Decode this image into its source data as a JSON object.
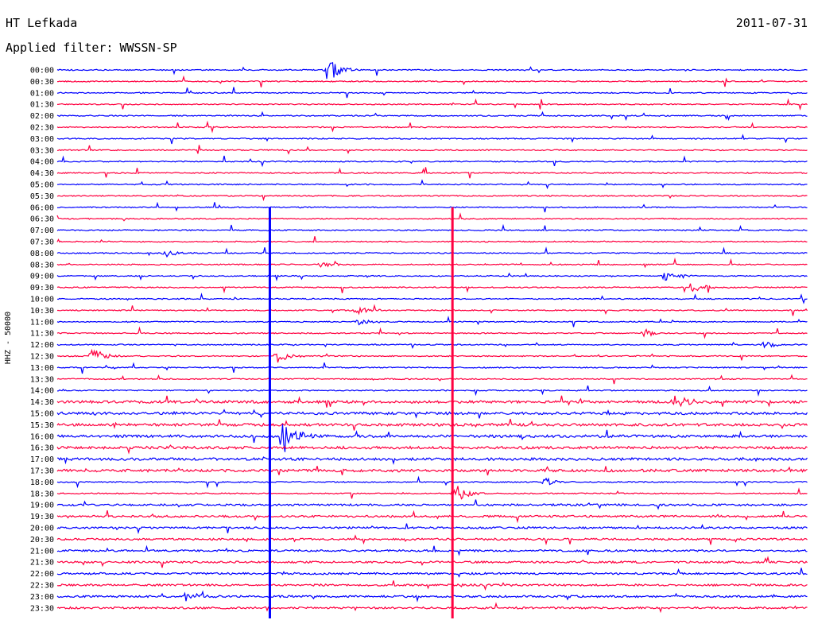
{
  "header": {
    "station": "HT Lefkada",
    "date": "2011-07-31",
    "filter_label": "Applied filter:",
    "filter_value": "WWSSN-SP"
  },
  "channel_label": "HHZ - 50000",
  "chart_data": {
    "type": "line",
    "title": "HT Lefkada",
    "subtitle": "Applied filter: WWSSN-SP",
    "ylabel": "HHZ - 50000",
    "ticks": [
      "00:00",
      "00:30",
      "01:00",
      "01:30",
      "02:00",
      "02:30",
      "03:00",
      "03:30",
      "04:00",
      "04:30",
      "05:00",
      "05:30",
      "06:00",
      "06:30",
      "07:00",
      "07:30",
      "08:00",
      "08:30",
      "09:00",
      "09:30",
      "10:00",
      "10:30",
      "11:00",
      "11:30",
      "12:00",
      "12:30",
      "13:00",
      "13:30",
      "14:00",
      "14:30",
      "15:00",
      "15:30",
      "16:00",
      "16:30",
      "17:00",
      "17:30",
      "18:00",
      "18:30",
      "19:00",
      "19:30",
      "20:00",
      "20:30",
      "21:00",
      "21:30",
      "22:00",
      "22:30",
      "23:00",
      "23:30"
    ],
    "x_minutes_per_line": [
      0,
      30
    ],
    "trace_colors": [
      "#0000ff",
      "#ff0040"
    ],
    "grid": false,
    "events": [
      {
        "trace": "00:00",
        "minute": 10.8,
        "amplitude": 1.6
      },
      {
        "trace": "08:00",
        "minute": 4.3,
        "amplitude": 0.5
      },
      {
        "trace": "08:30",
        "minute": 10.5,
        "amplitude": 0.6
      },
      {
        "trace": "09:00",
        "minute": 24.3,
        "amplitude": 0.6
      },
      {
        "trace": "09:30",
        "minute": 25.3,
        "amplitude": 0.8
      },
      {
        "trace": "10:30",
        "minute": 12.0,
        "amplitude": 0.7
      },
      {
        "trace": "11:00",
        "minute": 12.0,
        "amplitude": 0.5
      },
      {
        "trace": "11:30",
        "minute": 23.5,
        "amplitude": 0.5
      },
      {
        "trace": "12:00",
        "minute": 28.3,
        "amplitude": 0.5
      },
      {
        "trace": "12:30",
        "minute": 1.4,
        "amplitude": 1.0
      },
      {
        "trace": "12:30",
        "minute": 8.8,
        "amplitude": 0.8
      },
      {
        "trace": "14:30",
        "minute": 24.7,
        "amplitude": 1.2
      },
      {
        "trace": "16:00",
        "minute": 9.0,
        "amplitude": 2.6
      },
      {
        "trace": "18:00",
        "minute": 19.5,
        "amplitude": 0.5
      },
      {
        "trace": "18:30",
        "minute": 15.9,
        "amplitude": 1.5
      },
      {
        "trace": "23:00",
        "minute": 5.1,
        "amplitude": 0.7
      }
    ],
    "clipped_traces": [
      {
        "minute": 8.5,
        "from": "06:00",
        "to": "23:30",
        "color": "#0000ff"
      },
      {
        "minute": 15.8,
        "from": "06:00",
        "to": "23:30",
        "color": "#ff0040"
      }
    ]
  }
}
